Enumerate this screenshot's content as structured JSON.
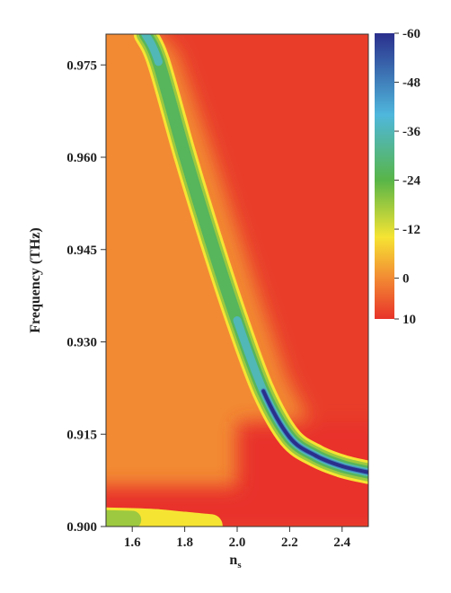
{
  "chart_data": {
    "type": "heatmap",
    "title": "",
    "xlabel": "n",
    "xlabel_subscript": "s",
    "ylabel": "Frequency (THz)",
    "xlim": [
      1.5,
      2.5
    ],
    "ylim": [
      0.9,
      0.98
    ],
    "x_ticks": [
      1.6,
      1.8,
      2.0,
      2.2,
      2.4
    ],
    "x_tick_labels": [
      "1.6",
      "1.8",
      "2.0",
      "2.2",
      "2.4"
    ],
    "y_ticks": [
      0.9,
      0.915,
      0.93,
      0.945,
      0.96,
      0.975
    ],
    "y_tick_labels": [
      "0.900",
      "0.915",
      "0.930",
      "0.945",
      "0.960",
      "0.975"
    ],
    "colorbar": {
      "range": [
        -60,
        10
      ],
      "ticks": [
        -60,
        -48,
        -36,
        -24,
        -12,
        0,
        10
      ],
      "tick_labels": [
        "-60",
        "-48",
        "-36",
        "-24",
        "-12",
        "0",
        "10"
      ],
      "colors": [
        {
          "value": 10,
          "color": "#e8332a"
        },
        {
          "value": 0,
          "color": "#f28a33"
        },
        {
          "value": -10,
          "color": "#f6e433"
        },
        {
          "value": -24,
          "color": "#58b548"
        },
        {
          "value": -40,
          "color": "#4fb7dc"
        },
        {
          "value": -60,
          "color": "#2a2f8c"
        }
      ]
    },
    "resonance_curve": {
      "description_values": "frequency of resonance band vs n_s",
      "n_s": [
        1.65,
        1.7,
        1.8,
        1.9,
        2.0,
        2.1,
        2.2,
        2.3,
        2.4,
        2.5
      ],
      "frequency": [
        0.98,
        0.9755,
        0.9605,
        0.9465,
        0.9335,
        0.922,
        0.9145,
        0.9115,
        0.9098,
        0.9088
      ],
      "depth": [
        -36,
        -34,
        -30,
        -28,
        -28,
        -40,
        -60,
        -60,
        -60,
        -60
      ]
    },
    "lower_band": {
      "n_s": [
        1.5,
        1.6,
        1.7,
        1.8,
        1.9,
        1.95
      ],
      "frequency": [
        0.9012,
        0.9011,
        0.9009,
        0.9005,
        0.9001,
        0.8998
      ],
      "depth": [
        -18,
        -16,
        -14,
        -10,
        -6,
        -2
      ]
    },
    "background_level": 0,
    "high_transmission_region_level": 10
  }
}
